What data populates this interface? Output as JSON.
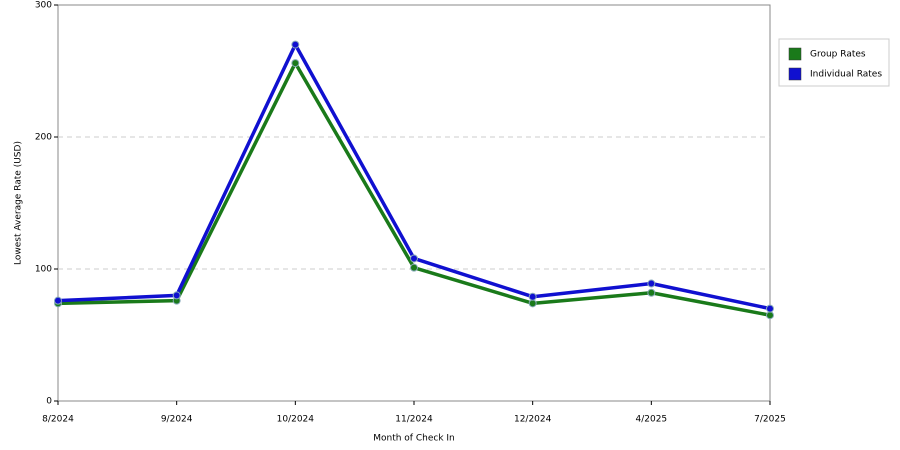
{
  "chart_data": {
    "type": "line",
    "x_label": "Month of Check In",
    "y_label": "Lowest Average Rate (USD)",
    "categories": [
      "8/2024",
      "9/2024",
      "10/2024",
      "11/2024",
      "12/2024",
      "4/2025",
      "7/2025"
    ],
    "series": [
      {
        "name": "Group Rates",
        "color": "#1a7a1a",
        "values": [
          74,
          76,
          256,
          101,
          74,
          82,
          65
        ]
      },
      {
        "name": "Individual Rates",
        "color": "#1010d0",
        "values": [
          76,
          80,
          270,
          108,
          79,
          89,
          70
        ]
      }
    ],
    "ylim": [
      0,
      300
    ],
    "yticks": [
      0,
      100,
      200,
      300
    ],
    "grid": true,
    "legend": "right"
  }
}
